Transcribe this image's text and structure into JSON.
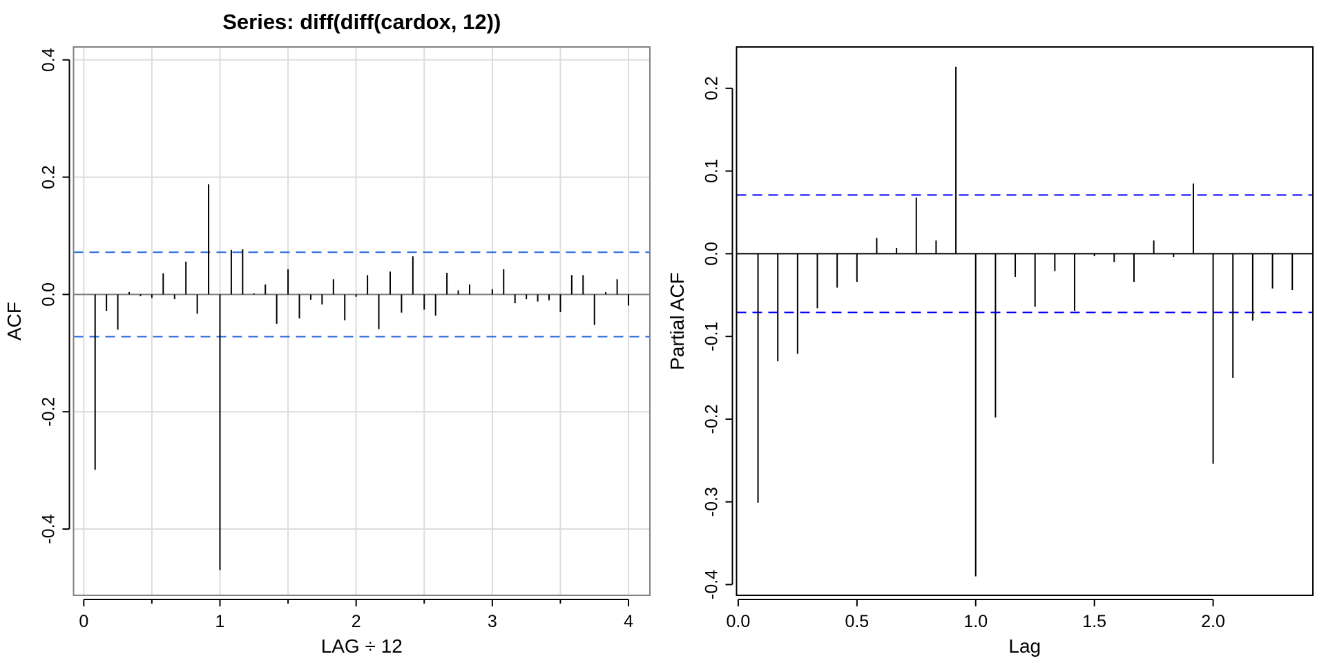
{
  "chart_data": [
    {
      "type": "bar",
      "subtype": "acf-spikes",
      "title": "Series:  diff(diff(cardox, 12))",
      "xlabel": "LAG ÷ 12",
      "ylabel": "ACF",
      "xlim": [
        -0.075,
        4.157
      ],
      "ylim": [
        -0.513,
        0.422
      ],
      "xticks": [
        0,
        1,
        2,
        3,
        4
      ],
      "xtick_labels": [
        "0",
        "1",
        "2",
        "3",
        "4"
      ],
      "xminor_ticks": [
        0.5,
        1.5,
        2.5,
        3.5
      ],
      "yticks": [
        -0.4,
        -0.2,
        0.0,
        0.2,
        0.4
      ],
      "ytick_labels": [
        "-0.4",
        "-0.2",
        "0.0",
        "0.2",
        "0.4"
      ],
      "grid": true,
      "grid_x": [
        0,
        0.5,
        1,
        1.5,
        2,
        2.5,
        3,
        3.5,
        4
      ],
      "grid_y": [
        -0.4,
        -0.2,
        0.0,
        0.2,
        0.4
      ],
      "conf_bounds": [
        0.072,
        -0.072
      ],
      "conf_color": "#1f66d9",
      "lag_divisor": 12,
      "lags": [
        1,
        2,
        3,
        4,
        5,
        6,
        7,
        8,
        9,
        10,
        11,
        12,
        13,
        14,
        15,
        16,
        17,
        18,
        19,
        20,
        21,
        22,
        23,
        24,
        25,
        26,
        27,
        28,
        29,
        30,
        31,
        32,
        33,
        34,
        35,
        36,
        37,
        38,
        39,
        40,
        41,
        42,
        43,
        44,
        45,
        46,
        47,
        48
      ],
      "values": [
        -0.299,
        -0.028,
        -0.06,
        0.004,
        -0.003,
        -0.006,
        0.036,
        -0.008,
        0.056,
        -0.033,
        0.188,
        -0.47,
        0.076,
        0.077,
        0.002,
        0.017,
        -0.05,
        0.043,
        -0.041,
        -0.009,
        -0.017,
        0.026,
        -0.044,
        -0.004,
        0.033,
        -0.059,
        0.039,
        -0.031,
        0.065,
        -0.026,
        -0.036,
        0.037,
        0.007,
        0.017,
        0.0,
        0.009,
        0.043,
        -0.015,
        -0.008,
        -0.012,
        -0.01,
        -0.03,
        0.033,
        0.033,
        -0.052,
        0.004,
        0.026,
        -0.019
      ]
    },
    {
      "type": "bar",
      "subtype": "pacf-spikes",
      "title": "",
      "xlabel": "Lag",
      "ylabel": "Partial ACF",
      "xlim": [
        -0.007,
        2.42
      ],
      "ylim": [
        -0.413,
        0.25
      ],
      "xticks": [
        0.0,
        0.5,
        1.0,
        1.5,
        2.0
      ],
      "xtick_labels": [
        "0.0",
        "0.5",
        "1.0",
        "1.5",
        "2.0"
      ],
      "yticks": [
        -0.4,
        -0.3,
        -0.2,
        -0.1,
        0.0,
        0.1,
        0.2
      ],
      "ytick_labels": [
        "-0.4",
        "-0.3",
        "-0.2",
        "-0.1",
        "0.0",
        "0.1",
        "0.2"
      ],
      "grid": false,
      "conf_bounds": [
        0.071,
        -0.071
      ],
      "conf_color": "#0000ff",
      "lag_divisor": 12,
      "lags": [
        1,
        2,
        3,
        4,
        5,
        6,
        7,
        8,
        9,
        10,
        11,
        12,
        13,
        14,
        15,
        16,
        17,
        18,
        19,
        20,
        21,
        22,
        23,
        24,
        25,
        26,
        27,
        28
      ],
      "values": [
        -0.301,
        -0.13,
        -0.121,
        -0.066,
        -0.041,
        -0.034,
        0.019,
        0.007,
        0.068,
        0.016,
        0.226,
        -0.39,
        -0.198,
        -0.028,
        -0.064,
        -0.021,
        -0.069,
        -0.003,
        -0.01,
        -0.034,
        0.016,
        -0.004,
        0.085,
        -0.254,
        -0.15,
        -0.081,
        -0.042,
        -0.044
      ]
    }
  ]
}
